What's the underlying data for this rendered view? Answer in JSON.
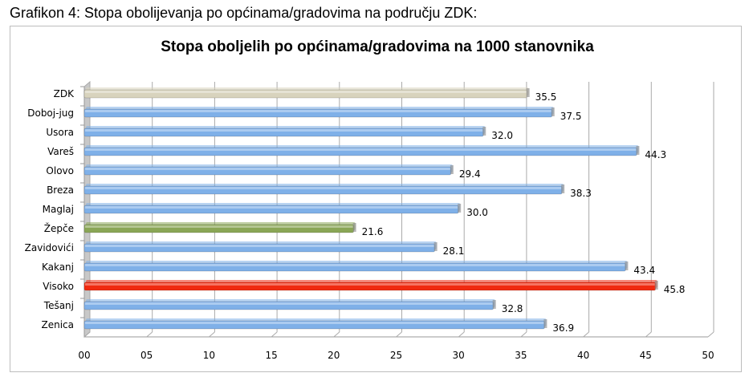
{
  "caption": "Grafikon 4: Stopa obolijevanja po općinama/gradovima na području ZDK:",
  "chart_data": {
    "type": "bar",
    "orientation": "horizontal",
    "title": "Stopa oboljelih po općinama/gradovima na 1000 stanovnika",
    "xlabel": "",
    "ylabel": "",
    "xlim": [
      0,
      50
    ],
    "xticks": [
      "00",
      "05",
      "10",
      "15",
      "20",
      "25",
      "30",
      "35",
      "40",
      "45",
      "50"
    ],
    "grid": true,
    "legend": "none",
    "categories": [
      "ZDK",
      "Doboj-jug",
      "Usora",
      "Vareš",
      "Olovo",
      "Breza",
      "Maglaj",
      "Žepče",
      "Zavidovići",
      "Kakanj",
      "Visoko",
      "Tešanj",
      "Zenica"
    ],
    "values": [
      35.5,
      37.5,
      32.0,
      44.3,
      29.4,
      38.3,
      30.0,
      21.6,
      28.1,
      43.4,
      45.8,
      32.8,
      36.9
    ],
    "value_labels": [
      "35.5",
      "37.5",
      "32.0",
      "44.3",
      "29.4",
      "38.3",
      "30.0",
      "21.6",
      "28.1",
      "43.4",
      "45.8",
      "32.8",
      "36.9"
    ],
    "colors": [
      "#d8d3bd",
      "#7fb0e8",
      "#7fb0e8",
      "#7fb0e8",
      "#7fb0e8",
      "#7fb0e8",
      "#7fb0e8",
      "#8aa656",
      "#7fb0e8",
      "#7fb0e8",
      "#f02a10",
      "#7fb0e8",
      "#7fb0e8"
    ]
  }
}
